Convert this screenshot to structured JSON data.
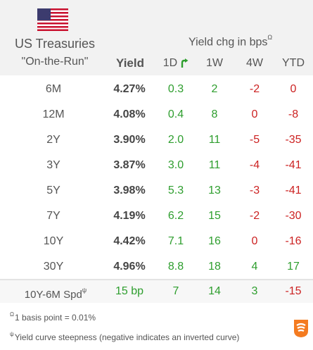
{
  "header": {
    "title": "US Treasuries",
    "subtitle": "\"On-the-Run\"",
    "yield_label": "Yield",
    "chg_label": "Yield chg in bps",
    "chg_sup": "Ω",
    "columns": [
      "1D",
      "1W",
      "4W",
      "YTD"
    ]
  },
  "rows": [
    {
      "label": "6M",
      "yield": "4.27%",
      "d1": "0.3",
      "w1": "2",
      "w4": "-2",
      "ytd": "0"
    },
    {
      "label": "12M",
      "yield": "4.08%",
      "d1": "0.4",
      "w1": "8",
      "w4": "0",
      "ytd": "-8"
    },
    {
      "label": "2Y",
      "yield": "3.90%",
      "d1": "2.0",
      "w1": "11",
      "w4": "-5",
      "ytd": "-35"
    },
    {
      "label": "3Y",
      "yield": "3.87%",
      "d1": "3.0",
      "w1": "11",
      "w4": "-4",
      "ytd": "-41"
    },
    {
      "label": "5Y",
      "yield": "3.98%",
      "d1": "5.3",
      "w1": "13",
      "w4": "-3",
      "ytd": "-41"
    },
    {
      "label": "7Y",
      "yield": "4.19%",
      "d1": "6.2",
      "w1": "15",
      "w4": "-2",
      "ytd": "-30"
    },
    {
      "label": "10Y",
      "yield": "4.42%",
      "d1": "7.1",
      "w1": "16",
      "w4": "0",
      "ytd": "-16"
    },
    {
      "label": "30Y",
      "yield": "4.96%",
      "d1": "8.8",
      "w1": "18",
      "w4": "4",
      "ytd": "17"
    }
  ],
  "spread": {
    "label": "10Y-6M Spd",
    "sup": "ψ",
    "yield": "15 bp",
    "d1": "7",
    "w1": "14",
    "w4": "3",
    "ytd": "-15"
  },
  "footnotes": {
    "fn1_sup": "Ω",
    "fn1": "1 basis point = 0.01%",
    "fn2_sup": "ψ",
    "fn2": "Yield curve steepness (negative indicates an inverted curve)"
  },
  "colors": {
    "positive": "#2e9e2e",
    "negative": "#cc2222",
    "header_bg": "#f2f2f2"
  },
  "icons": [
    "us-flag-icon",
    "green-curved-arrow-icon",
    "brand-logo-icon"
  ]
}
